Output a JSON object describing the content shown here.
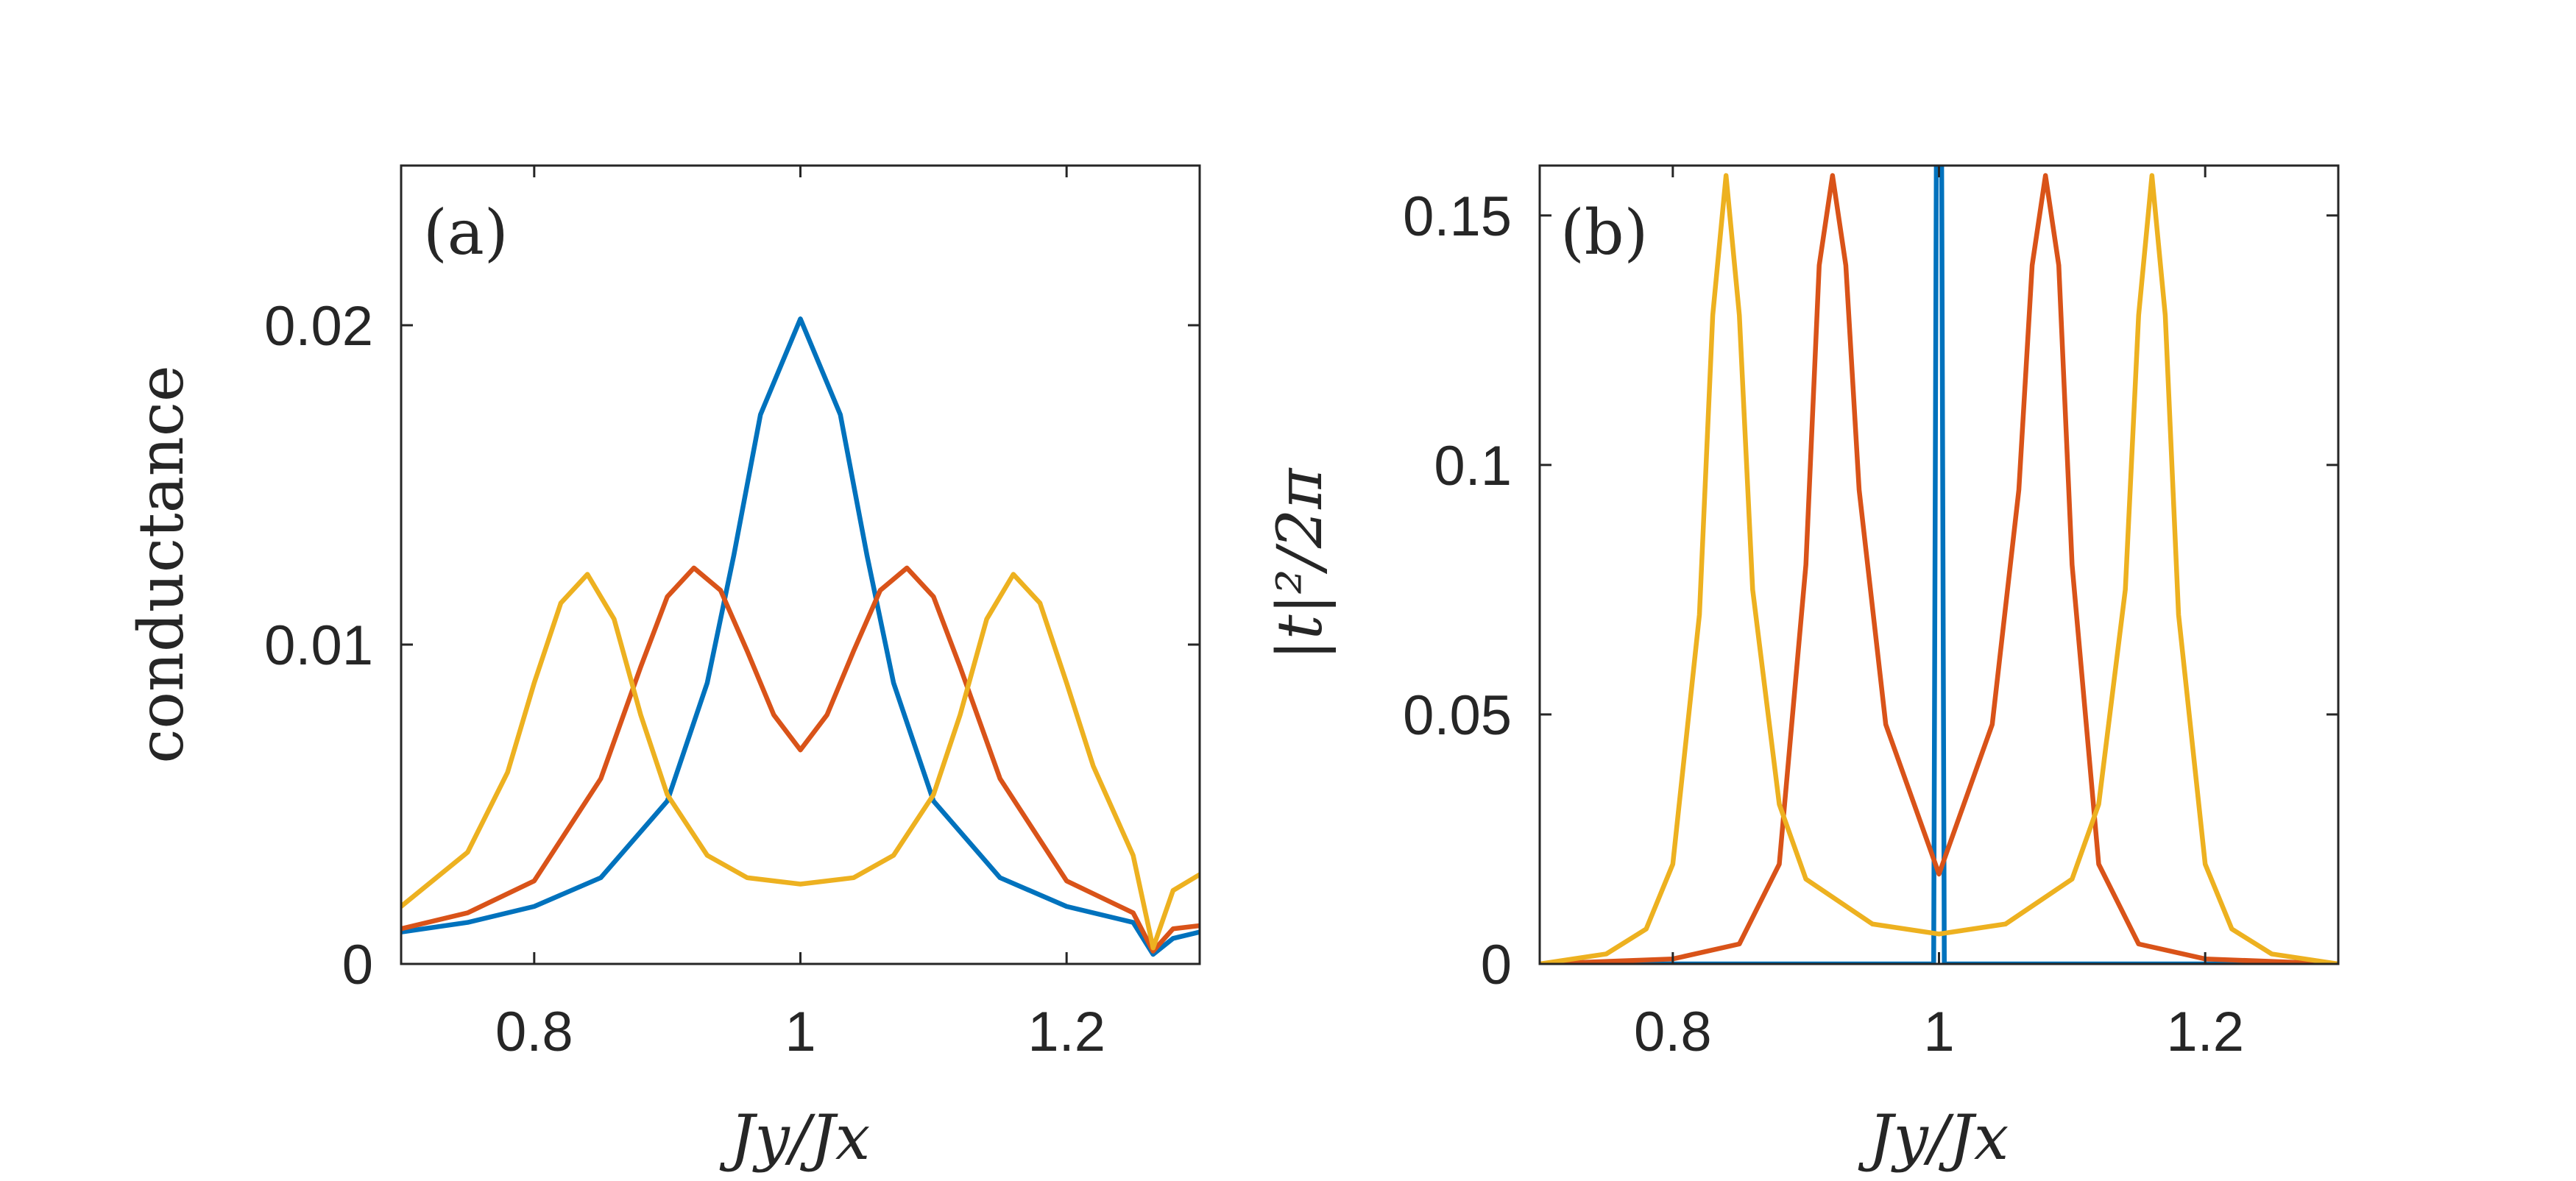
{
  "chart_data": [
    {
      "type": "line",
      "panel_label": "(a)",
      "xlabel": "Jy/Jx",
      "ylabel": "conductance",
      "xlim": [
        0.7,
        1.3
      ],
      "ylim": [
        0,
        0.025
      ],
      "xticks": [
        0.8,
        1,
        1.2
      ],
      "xtick_labels": [
        "0.8",
        "1",
        "1.2"
      ],
      "yticks": [
        0,
        0.01,
        0.02
      ],
      "ytick_labels": [
        "0",
        "0.01",
        "0.02"
      ],
      "series": [
        {
          "name": "blue",
          "color": "#0072BD",
          "x": [
            0.7,
            0.75,
            0.8,
            0.85,
            0.9,
            0.93,
            0.95,
            0.97,
            1.0,
            1.03,
            1.05,
            1.07,
            1.1,
            1.15,
            1.2,
            1.25,
            1.265,
            1.28,
            1.3
          ],
          "y": [
            0.001,
            0.0013,
            0.0018,
            0.0027,
            0.0051,
            0.0088,
            0.0128,
            0.0172,
            0.0202,
            0.0172,
            0.0128,
            0.0088,
            0.0051,
            0.0027,
            0.0018,
            0.0013,
            0.0003,
            0.0008,
            0.001
          ]
        },
        {
          "name": "red",
          "color": "#D95319",
          "x": [
            0.7,
            0.75,
            0.8,
            0.85,
            0.88,
            0.9,
            0.92,
            0.94,
            0.96,
            0.98,
            1.0,
            1.02,
            1.04,
            1.06,
            1.08,
            1.1,
            1.12,
            1.15,
            1.2,
            1.25,
            1.265,
            1.28,
            1.3
          ],
          "y": [
            0.0011,
            0.0016,
            0.0026,
            0.0058,
            0.0093,
            0.0115,
            0.0124,
            0.0117,
            0.0098,
            0.0078,
            0.0067,
            0.0078,
            0.0098,
            0.0117,
            0.0124,
            0.0115,
            0.0093,
            0.0058,
            0.0026,
            0.0016,
            0.0004,
            0.0011,
            0.0012
          ]
        },
        {
          "name": "yellow",
          "color": "#EDB120",
          "x": [
            0.7,
            0.75,
            0.78,
            0.8,
            0.82,
            0.84,
            0.86,
            0.88,
            0.9,
            0.93,
            0.96,
            1.0,
            1.04,
            1.07,
            1.1,
            1.12,
            1.14,
            1.16,
            1.18,
            1.2,
            1.22,
            1.25,
            1.265,
            1.28,
            1.3
          ],
          "y": [
            0.0018,
            0.0035,
            0.006,
            0.0088,
            0.0113,
            0.0122,
            0.0108,
            0.0078,
            0.0053,
            0.0034,
            0.0027,
            0.0025,
            0.0027,
            0.0034,
            0.0053,
            0.0078,
            0.0108,
            0.0122,
            0.0113,
            0.0088,
            0.0062,
            0.0034,
            0.0005,
            0.0023,
            0.0028
          ]
        }
      ]
    },
    {
      "type": "line",
      "panel_label": "(b)",
      "xlabel": "Jy/Jx",
      "ylabel": "|t|²/2π",
      "xlim": [
        0.7,
        1.3
      ],
      "ylim": [
        0,
        0.16
      ],
      "xticks": [
        0.8,
        1,
        1.2
      ],
      "xtick_labels": [
        "0.8",
        "1",
        "1.2"
      ],
      "yticks": [
        0,
        0.05,
        0.1,
        0.15
      ],
      "ytick_labels": [
        "0",
        "0.05",
        "0.1",
        "0.15"
      ],
      "series": [
        {
          "name": "blue",
          "color": "#0072BD",
          "x": [
            0.7,
            0.996,
            0.998,
            1.0,
            1.002,
            1.004,
            1.3
          ],
          "y": [
            0.0,
            0.0,
            0.16,
            0.16,
            0.16,
            0.0,
            0.0
          ]
        },
        {
          "name": "red",
          "color": "#D95319",
          "x": [
            0.7,
            0.8,
            0.85,
            0.88,
            0.9,
            0.91,
            0.92,
            0.93,
            0.94,
            0.96,
            1.0,
            1.04,
            1.06,
            1.07,
            1.08,
            1.09,
            1.1,
            1.12,
            1.15,
            1.2,
            1.3
          ],
          "y": [
            0.0,
            0.001,
            0.004,
            0.02,
            0.08,
            0.14,
            0.158,
            0.14,
            0.095,
            0.048,
            0.018,
            0.048,
            0.095,
            0.14,
            0.158,
            0.14,
            0.08,
            0.02,
            0.004,
            0.001,
            0.0
          ]
        },
        {
          "name": "yellow",
          "color": "#EDB120",
          "x": [
            0.7,
            0.75,
            0.78,
            0.8,
            0.82,
            0.83,
            0.84,
            0.85,
            0.86,
            0.88,
            0.9,
            0.95,
            1.0,
            1.05,
            1.1,
            1.12,
            1.14,
            1.15,
            1.16,
            1.17,
            1.18,
            1.2,
            1.22,
            1.25,
            1.3
          ],
          "y": [
            0.0,
            0.002,
            0.007,
            0.02,
            0.07,
            0.13,
            0.158,
            0.13,
            0.075,
            0.032,
            0.017,
            0.008,
            0.006,
            0.008,
            0.017,
            0.032,
            0.075,
            0.13,
            0.158,
            0.13,
            0.07,
            0.02,
            0.007,
            0.002,
            0.0
          ]
        }
      ]
    }
  ]
}
